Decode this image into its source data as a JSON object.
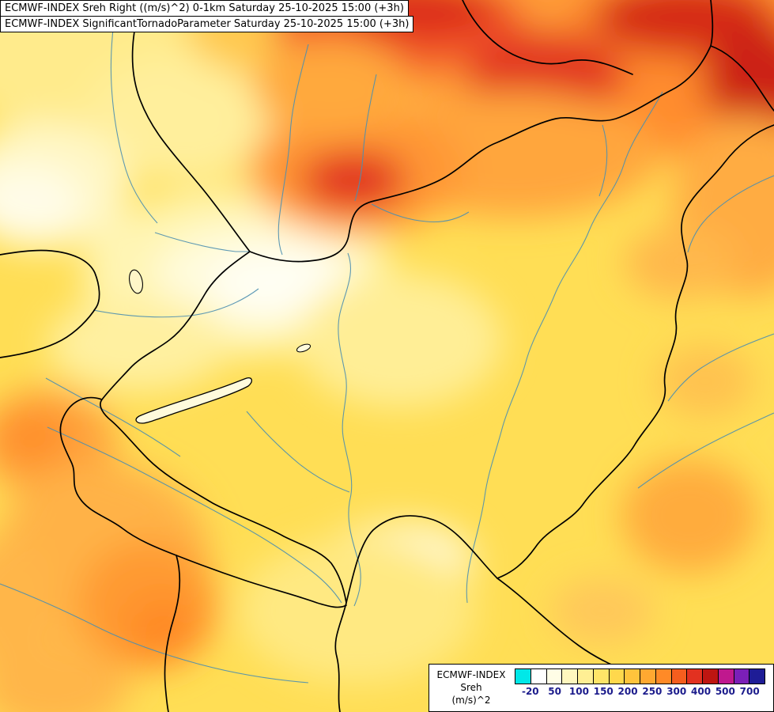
{
  "header": {
    "line1": "ECMWF-INDEX Sreh Right ((m/s)^2) 0-1km Saturday 25-10-2025 15:00 (+3h)",
    "line2": "ECMWF-INDEX SignificantTornadoParameter Saturday 25-10-2025 15:00 (+3h)"
  },
  "legend": {
    "title": "ECMWF-INDEX",
    "parameter": "Sreh",
    "units": "(m/s)^2",
    "colorbar": {
      "tick_color": "#1c1c8c",
      "colors": [
        "#00E8E8",
        "#FFFFFF",
        "#FFFDE6",
        "#FFF7BE",
        "#FFEF94",
        "#FFE568",
        "#FFD84C",
        "#FFC43C",
        "#FFA831",
        "#FF8A27",
        "#F55E1E",
        "#E23120",
        "#BE1511",
        "#C0188E",
        "#7B1FB8",
        "#1E1C96"
      ],
      "ticks": [
        "-20",
        "50",
        "100",
        "150",
        "200",
        "250",
        "300",
        "400",
        "500",
        "700"
      ]
    }
  },
  "map_colors": {
    "base_fill": "#FFDE55",
    "border_color": "#000000",
    "river_color": "#4C8FB0",
    "max_zone_color": "#CC2412"
  }
}
